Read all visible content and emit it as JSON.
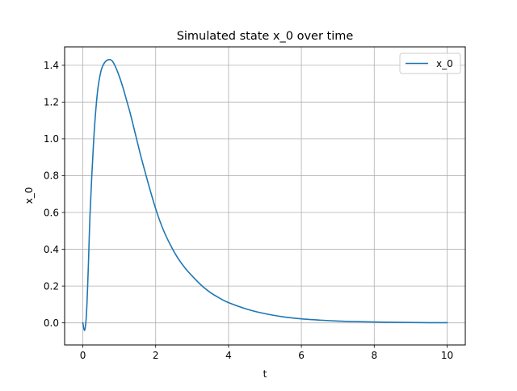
{
  "chart_data": {
    "type": "line",
    "title": "Simulated state x_0 over time",
    "xlabel": "t",
    "ylabel": "x_0",
    "xlim": [
      -0.5,
      10.5
    ],
    "ylim": [
      -0.12,
      1.5
    ],
    "x_ticks": [
      0,
      2,
      4,
      6,
      8,
      10
    ],
    "y_ticks": [
      0.0,
      0.2,
      0.4,
      0.6,
      0.8,
      1.0,
      1.2,
      1.4
    ],
    "x_tick_labels": [
      "0",
      "2",
      "4",
      "6",
      "8",
      "10"
    ],
    "y_tick_labels": [
      "0.0",
      "0.2",
      "0.4",
      "0.6",
      "0.8",
      "1.0",
      "1.2",
      "1.4"
    ],
    "grid": true,
    "legend": {
      "placement": "top-right",
      "entries": [
        "x_0"
      ]
    },
    "series": [
      {
        "name": "x_0",
        "color": "#1f77b4",
        "x": [
          0.0,
          0.05,
          0.1,
          0.15,
          0.2,
          0.3,
          0.4,
          0.5,
          0.6,
          0.7,
          0.8,
          0.9,
          1.0,
          1.1,
          1.2,
          1.3,
          1.4,
          1.5,
          1.6,
          1.8,
          2.0,
          2.2,
          2.4,
          2.6,
          2.8,
          3.0,
          3.25,
          3.5,
          3.75,
          4.0,
          4.5,
          5.0,
          5.5,
          6.0,
          6.5,
          7.0,
          7.5,
          8.0,
          8.5,
          9.0,
          9.5,
          10.0
        ],
        "y": [
          0.0,
          -0.04,
          0.05,
          0.3,
          0.6,
          1.0,
          1.25,
          1.37,
          1.415,
          1.43,
          1.425,
          1.39,
          1.34,
          1.28,
          1.21,
          1.14,
          1.06,
          0.98,
          0.9,
          0.755,
          0.62,
          0.51,
          0.425,
          0.355,
          0.3,
          0.255,
          0.205,
          0.165,
          0.135,
          0.11,
          0.075,
          0.05,
          0.033,
          0.022,
          0.015,
          0.01,
          0.007,
          0.005,
          0.003,
          0.002,
          0.001,
          0.001
        ]
      }
    ]
  }
}
